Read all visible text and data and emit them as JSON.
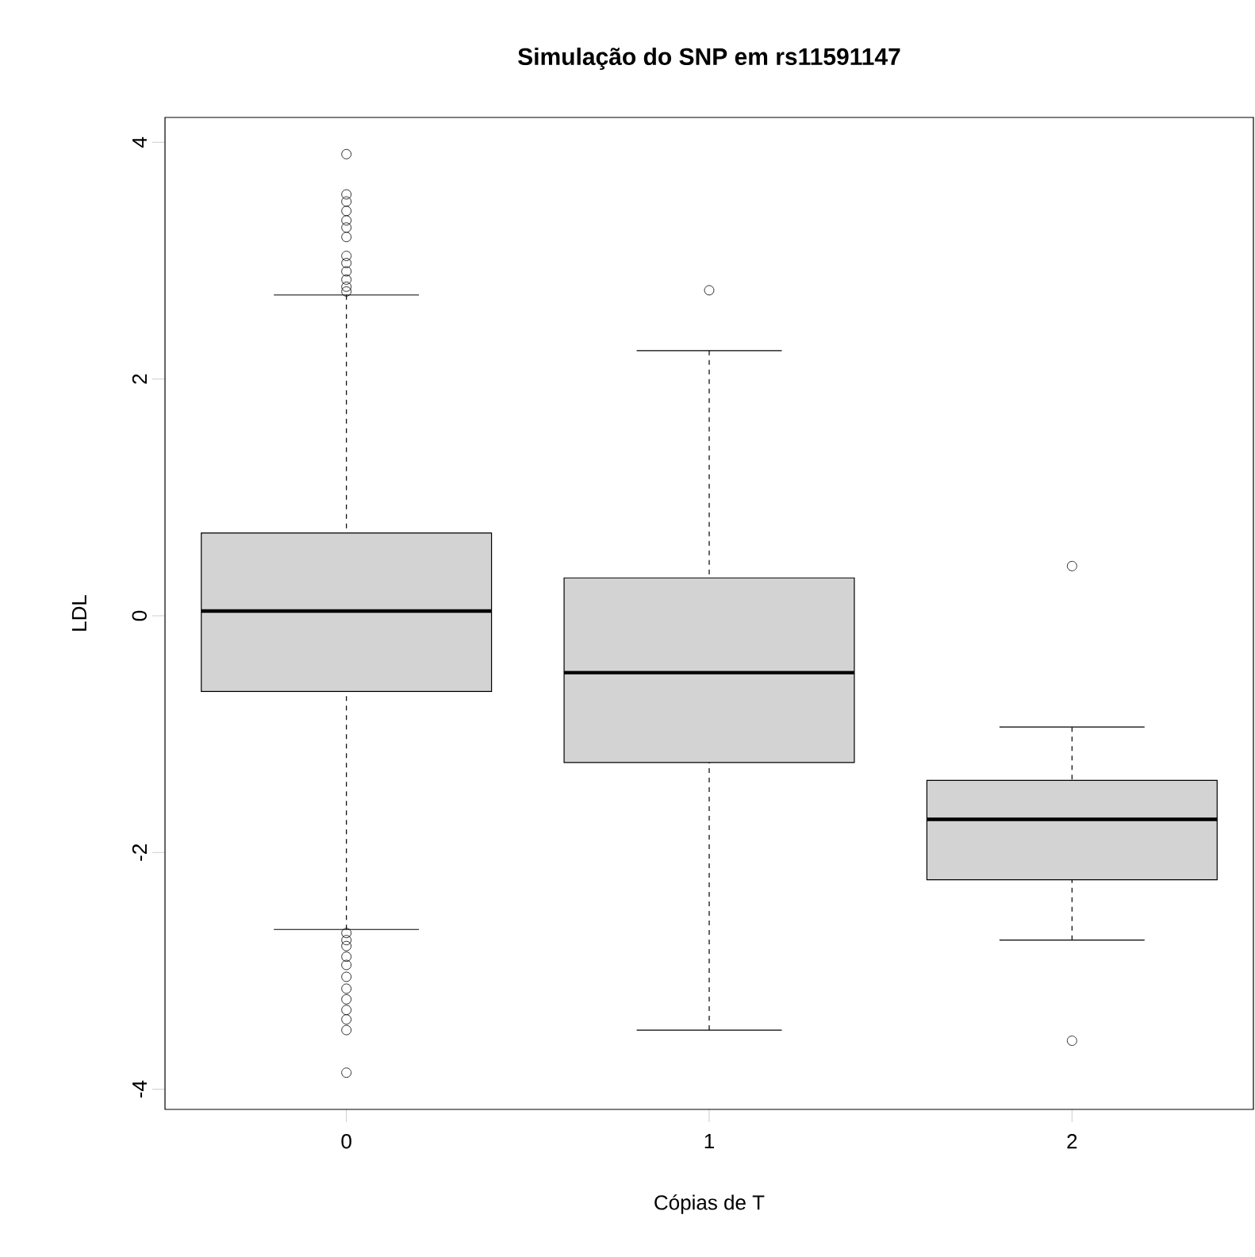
{
  "chart_data": {
    "type": "box",
    "title": "Simulação do SNP em rs11591147",
    "xlabel": "Cópias de T",
    "ylabel": "LDL",
    "categories": [
      "0",
      "1",
      "2"
    ],
    "color": "#d3d3d3",
    "boxes": [
      {
        "low": -2.65,
        "q1": -0.64,
        "median": 0.04,
        "q3": 0.7,
        "high": 2.71,
        "outliers": [
          3.9,
          3.56,
          3.5,
          3.42,
          3.34,
          3.28,
          3.2,
          3.04,
          2.98,
          2.91,
          2.84,
          2.78,
          2.74,
          -2.68,
          -2.74,
          -2.79,
          -2.88,
          -2.95,
          -3.05,
          -3.15,
          -3.24,
          -3.33,
          -3.41,
          -3.5,
          -3.86
        ]
      },
      {
        "low": -3.5,
        "q1": -1.24,
        "median": -0.48,
        "q3": 0.32,
        "high": 2.24,
        "outliers": [
          2.75
        ]
      },
      {
        "low": -2.74,
        "q1": -2.23,
        "median": -1.72,
        "q3": -1.39,
        "high": -0.94,
        "outliers": [
          0.42,
          -3.59
        ]
      }
    ],
    "ylim": [
      -4.17,
      4.21
    ],
    "yticks": [
      -4,
      -2,
      0,
      2,
      4
    ]
  }
}
